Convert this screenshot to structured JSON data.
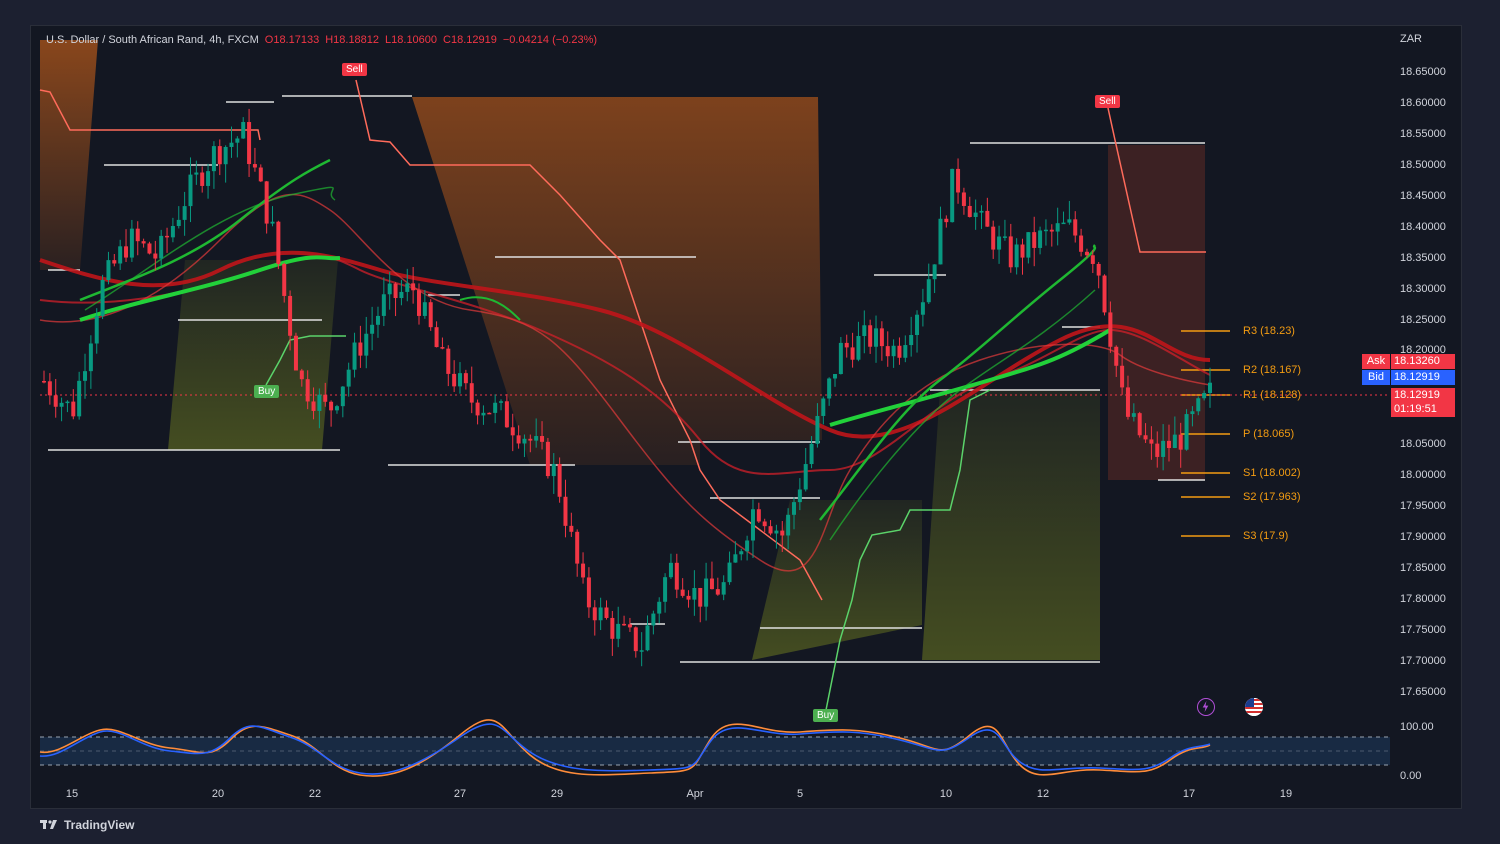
{
  "header": {
    "symbol": "U.S. Dollar / South African Rand, 4h, FXCM",
    "open": "O18.17133",
    "high": "H18.18812",
    "low": "L18.10600",
    "close": "C18.12919",
    "change": "−0.04214 (−0.23%)"
  },
  "currency": "ZAR",
  "price_ticks": [
    "18.65000",
    "18.60000",
    "18.55000",
    "18.50000",
    "18.45000",
    "18.40000",
    "18.35000",
    "18.30000",
    "18.25000",
    "18.20000",
    "18.05000",
    "18.00000",
    "17.95000",
    "17.90000",
    "17.85000",
    "17.80000",
    "17.75000",
    "17.70000",
    "17.65000"
  ],
  "osc_ticks": [
    "100.00",
    "0.00"
  ],
  "time_ticks": [
    "15",
    "20",
    "22",
    "27",
    "29",
    "Apr",
    "5",
    "10",
    "12",
    "17",
    "19"
  ],
  "pivots": {
    "r3": "R3 (18.23)",
    "r2": "R2 (18.167)",
    "r1": "R1 (18.128)",
    "p": "P (18.065)",
    "s1": "S1 (18.002)",
    "s2": "S2 (17.963)",
    "s3": "S3 (17.9)"
  },
  "signals": {
    "sell1": "Sell",
    "sell2": "Sell",
    "buy1": "Buy",
    "buy2": "Buy"
  },
  "price_tags": {
    "ask_label": "Ask",
    "ask_value": "18.13260",
    "bid_label": "Bid",
    "bid_value": "18.12919",
    "last_value": "18.12919",
    "countdown": "01:19:51"
  },
  "brand": "TradingView",
  "icons": [
    "lightning-icon",
    "us-flag-icon",
    "tradingview-logo-icon"
  ],
  "colors": {
    "background": "#131722",
    "up": "#089981",
    "down": "#f23645",
    "pivot": "#f39c12",
    "ask": "#f23645",
    "bid": "#2962ff"
  },
  "chart_data": {
    "type": "candlestick",
    "symbol": "USD/ZAR",
    "timeframe": "4h",
    "ylim": [
      17.63,
      18.67
    ],
    "pivots": {
      "R3": 18.23,
      "R2": 18.167,
      "R1": 18.128,
      "P": 18.065,
      "S1": 18.002,
      "S2": 17.963,
      "S3": 17.9
    },
    "approx_close_path": [
      18.15,
      18.1,
      18.3,
      18.38,
      18.35,
      18.45,
      18.52,
      18.55,
      18.4,
      18.15,
      18.1,
      18.2,
      18.28,
      18.3,
      18.18,
      18.12,
      18.1,
      18.06,
      18.0,
      17.8,
      17.75,
      17.72,
      17.85,
      17.8,
      17.82,
      17.95,
      17.9,
      18.05,
      18.2,
      18.22,
      18.2,
      18.3,
      18.48,
      18.4,
      18.35,
      18.38,
      18.4,
      18.35,
      18.1,
      18.03,
      18.06,
      18.13
    ],
    "oscillator": {
      "name": "stochastic",
      "ylim": [
        0,
        100
      ],
      "bands": [
        20,
        80
      ]
    }
  }
}
